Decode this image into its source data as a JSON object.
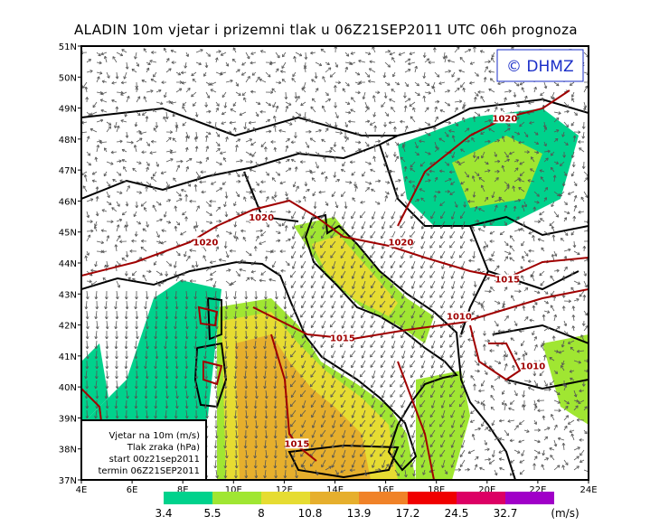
{
  "title": "ALADIN 10m vjetar i prizemni tlak u 06Z21SEP2011 UTC 06h prognoza",
  "logo": "© DHMZ",
  "info_box": {
    "line1": "Vjetar na 10m (m/s)",
    "line2": "Tlak zraka (hPa)",
    "line3": "start 00z21sep2011",
    "line4": "termin 06Z21SEP2011"
  },
  "axes": {
    "lat_labels": [
      "51N",
      "50N",
      "49N",
      "48N",
      "47N",
      "46N",
      "45N",
      "44N",
      "43N",
      "42N",
      "41N",
      "40N",
      "39N",
      "38N",
      "37N"
    ],
    "lon_labels": [
      "4E",
      "6E",
      "8E",
      "10E",
      "12E",
      "14E",
      "16E",
      "18E",
      "20E",
      "22E",
      "24E"
    ],
    "lat_range": [
      37,
      51
    ],
    "lon_range": [
      4,
      24
    ]
  },
  "isobars": [
    {
      "label": "1020",
      "lon": 20.7,
      "lat": 48.6
    },
    {
      "label": "1020",
      "lon": 11.1,
      "lat": 45.4
    },
    {
      "label": "1020",
      "lon": 8.9,
      "lat": 44.6
    },
    {
      "label": "1020",
      "lon": 16.6,
      "lat": 44.6
    },
    {
      "label": "1015",
      "lon": 20.8,
      "lat": 43.4
    },
    {
      "label": "1015",
      "lon": 14.3,
      "lat": 41.5
    },
    {
      "label": "1010",
      "lon": 18.9,
      "lat": 42.2
    },
    {
      "label": "1010",
      "lon": 21.8,
      "lat": 40.6
    },
    {
      "label": "1015",
      "lon": 12.5,
      "lat": 38.1
    }
  ],
  "colorbar": {
    "ticks": [
      "3.4",
      "5.5",
      "8",
      "10.8",
      "13.9",
      "17.2",
      "24.5",
      "32.7"
    ],
    "unit": "(m/s)",
    "colors": [
      "#00d28c",
      "#a0e632",
      "#e6dc32",
      "#e6af2d",
      "#f08228",
      "#f00000",
      "#dc0064",
      "#a000c8"
    ]
  },
  "colors": {
    "isobar": "#a00000",
    "arrow": "#555555",
    "coast": "#000000",
    "logo": "#1a2ec8"
  }
}
